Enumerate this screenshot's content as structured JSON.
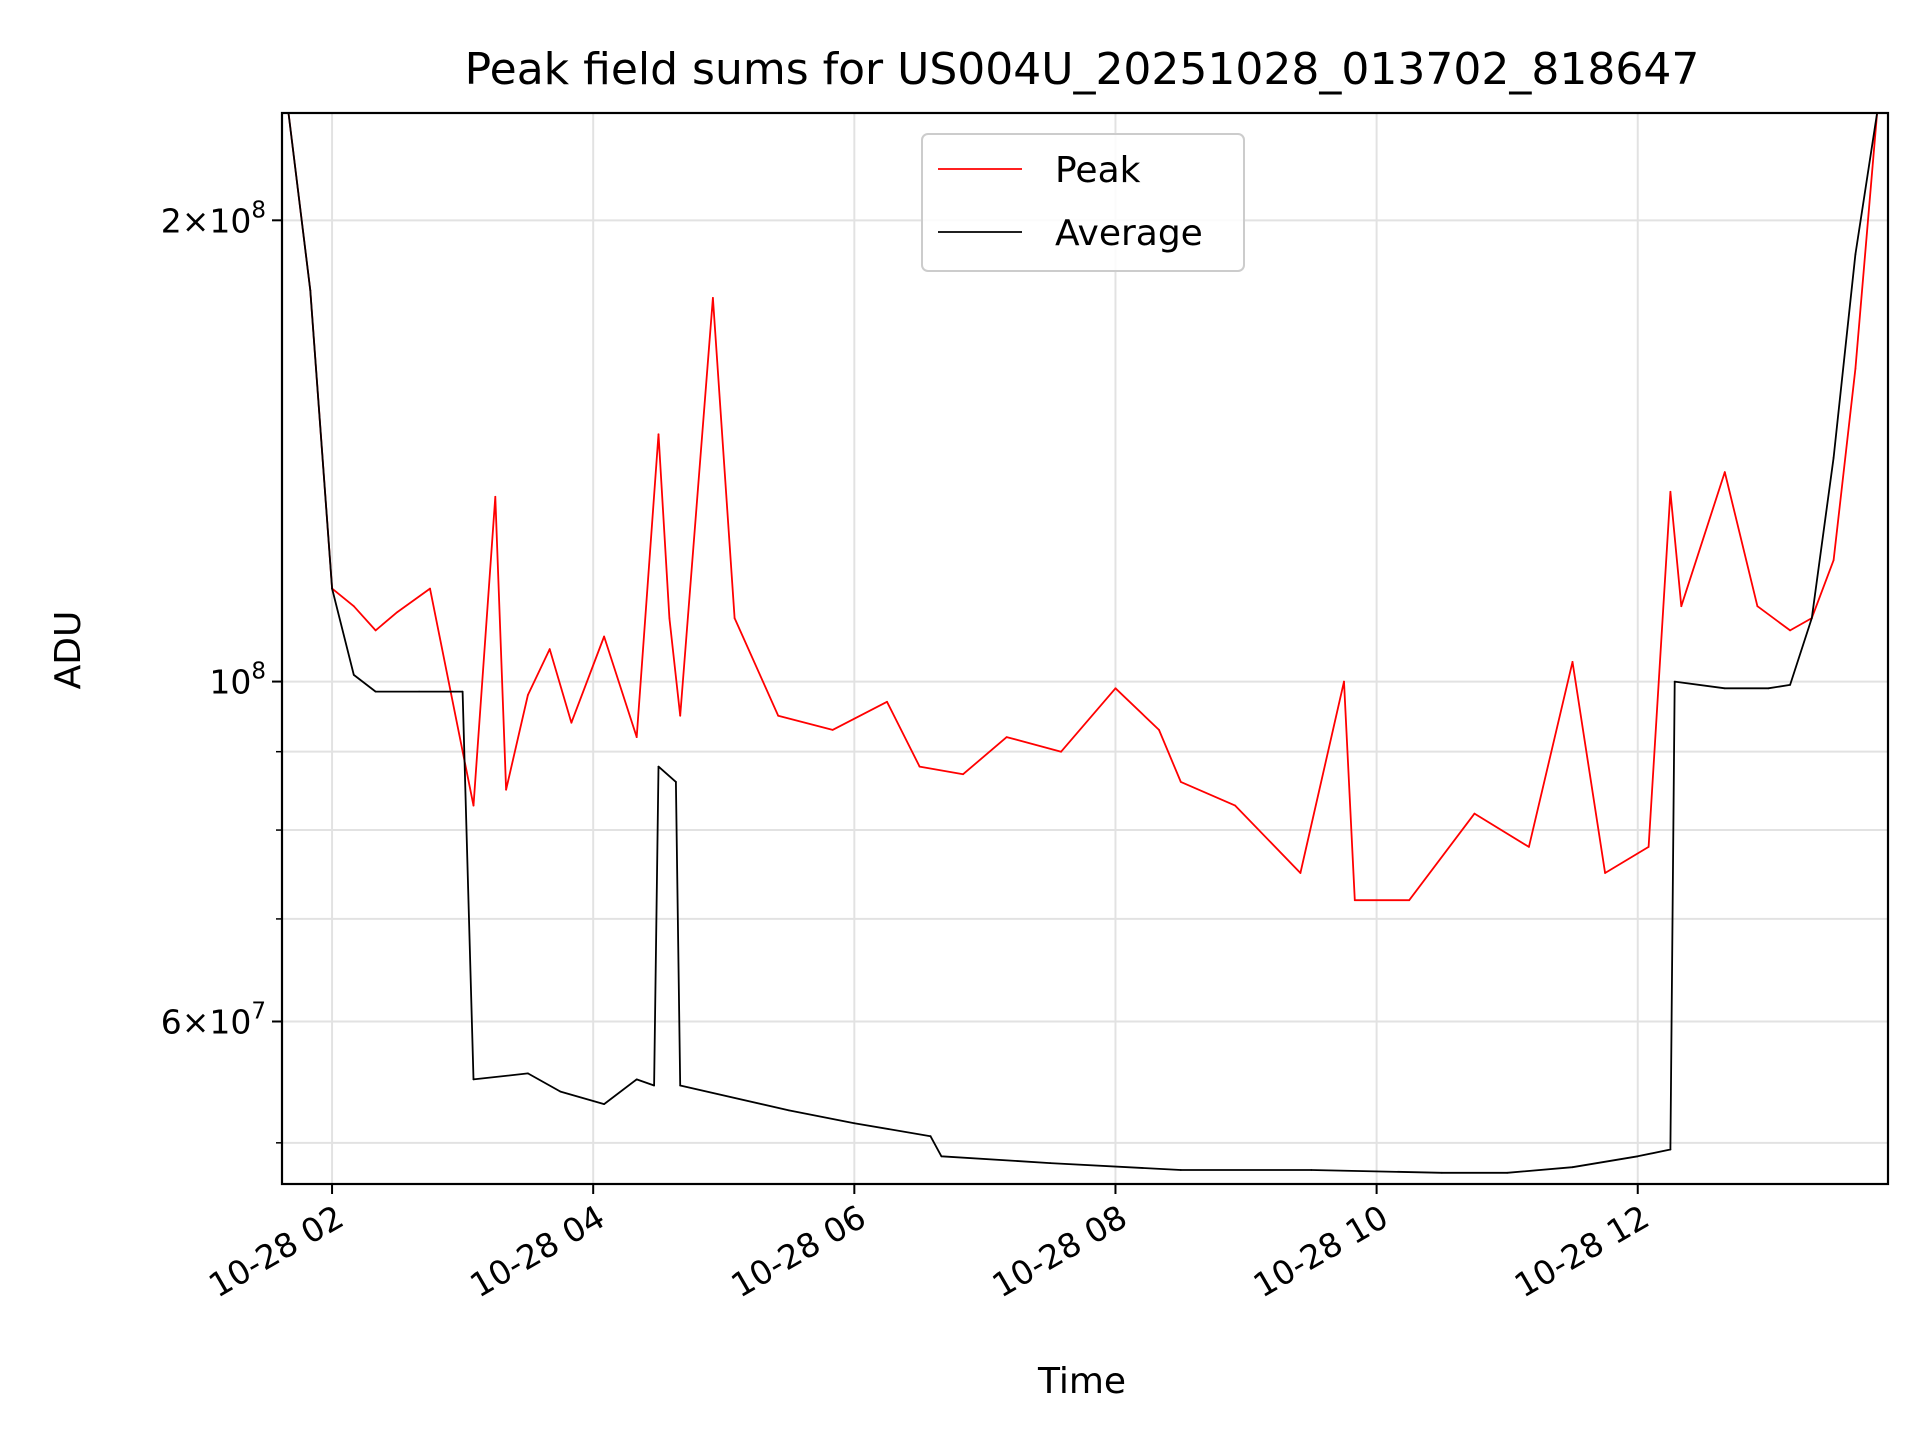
{
  "chart_data": {
    "type": "line",
    "title": "Peak field sums for US004U_20251028_013702_818647",
    "xlabel": "Time",
    "ylabel": "ADU",
    "x_scale": "time",
    "y_scale": "log",
    "xlim": [
      "2025-10-28 01:37",
      "2025-10-28 13:55"
    ],
    "ylim": [
      47000000,
      235000000
    ],
    "x_ticks": [
      {
        "value": "2025-10-28 02:00",
        "label": "10-28 02"
      },
      {
        "value": "2025-10-28 04:00",
        "label": "10-28 04"
      },
      {
        "value": "2025-10-28 06:00",
        "label": "10-28 06"
      },
      {
        "value": "2025-10-28 08:00",
        "label": "10-28 08"
      },
      {
        "value": "2025-10-28 10:00",
        "label": "10-28 10"
      },
      {
        "value": "2025-10-28 12:00",
        "label": "10-28 12"
      }
    ],
    "y_ticks": [
      {
        "value": 60000000,
        "mantissa": "6",
        "exponent": "7"
      },
      {
        "value": 100000000,
        "mantissa": "",
        "exponent": "8"
      },
      {
        "value": 200000000,
        "mantissa": "2",
        "exponent": "8"
      }
    ],
    "y_minor_ticks": [
      50000000,
      70000000,
      80000000,
      90000000
    ],
    "grid": true,
    "legend_position": "top-center",
    "series": [
      {
        "name": "Peak",
        "color": "#ff0000",
        "x": [
          "2025-10-28 01:40",
          "2025-10-28 01:50",
          "2025-10-28 02:00",
          "2025-10-28 02:10",
          "2025-10-28 02:20",
          "2025-10-28 02:30",
          "2025-10-28 02:45",
          "2025-10-28 03:05",
          "2025-10-28 03:15",
          "2025-10-28 03:20",
          "2025-10-28 03:30",
          "2025-10-28 03:40",
          "2025-10-28 03:50",
          "2025-10-28 04:05",
          "2025-10-28 04:20",
          "2025-10-28 04:30",
          "2025-10-28 04:35",
          "2025-10-28 04:40",
          "2025-10-28 04:55",
          "2025-10-28 05:05",
          "2025-10-28 05:25",
          "2025-10-28 05:50",
          "2025-10-28 06:15",
          "2025-10-28 06:30",
          "2025-10-28 06:50",
          "2025-10-28 07:10",
          "2025-10-28 07:35",
          "2025-10-28 08:00",
          "2025-10-28 08:20",
          "2025-10-28 08:30",
          "2025-10-28 08:55",
          "2025-10-28 09:25",
          "2025-10-28 09:45",
          "2025-10-28 09:50",
          "2025-10-28 10:15",
          "2025-10-28 10:45",
          "2025-10-28 11:10",
          "2025-10-28 11:30",
          "2025-10-28 11:45",
          "2025-10-28 12:05",
          "2025-10-28 12:15",
          "2025-10-28 12:20",
          "2025-10-28 12:40",
          "2025-10-28 12:55",
          "2025-10-28 13:10",
          "2025-10-28 13:20",
          "2025-10-28 13:30",
          "2025-10-28 13:40",
          "2025-10-28 13:50"
        ],
        "y": [
          235000000,
          180000000,
          115000000,
          112000000,
          108000000,
          111000000,
          115000000,
          83000000,
          132000000,
          85000000,
          98000000,
          105000000,
          94000000,
          107000000,
          92000000,
          145000000,
          110000000,
          95000000,
          178000000,
          110000000,
          95000000,
          93000000,
          97000000,
          88000000,
          87000000,
          92000000,
          90000000,
          99000000,
          93000000,
          86000000,
          83000000,
          75000000,
          100000000,
          72000000,
          72000000,
          82000000,
          78000000,
          103000000,
          75000000,
          78000000,
          133000000,
          112000000,
          137000000,
          112000000,
          108000000,
          110000000,
          120000000,
          160000000,
          235000000
        ]
      },
      {
        "name": "Average",
        "color": "#000000",
        "x": [
          "2025-10-28 01:40",
          "2025-10-28 01:50",
          "2025-10-28 02:00",
          "2025-10-28 02:10",
          "2025-10-28 02:20",
          "2025-10-28 02:40",
          "2025-10-28 03:00",
          "2025-10-28 03:05",
          "2025-10-28 03:30",
          "2025-10-28 03:45",
          "2025-10-28 04:05",
          "2025-10-28 04:20",
          "2025-10-28 04:28",
          "2025-10-28 04:30",
          "2025-10-28 04:38",
          "2025-10-28 04:40",
          "2025-10-28 05:30",
          "2025-10-28 06:00",
          "2025-10-28 06:35",
          "2025-10-28 06:40",
          "2025-10-28 07:30",
          "2025-10-28 08:30",
          "2025-10-28 09:30",
          "2025-10-28 10:30",
          "2025-10-28 11:00",
          "2025-10-28 11:30",
          "2025-10-28 12:00",
          "2025-10-28 12:15",
          "2025-10-28 12:17",
          "2025-10-28 12:40",
          "2025-10-28 13:00",
          "2025-10-28 13:10",
          "2025-10-28 13:20",
          "2025-10-28 13:30",
          "2025-10-28 13:40",
          "2025-10-28 13:50"
        ],
        "y": [
          235000000,
          180000000,
          115000000,
          101000000,
          98500000,
          98500000,
          98500000,
          55000000,
          55500000,
          54000000,
          53000000,
          55000000,
          54500000,
          88000000,
          86000000,
          54500000,
          52500000,
          51500000,
          50500000,
          49000000,
          48500000,
          48000000,
          48000000,
          47800000,
          47800000,
          48200000,
          49000000,
          49500000,
          100000000,
          99000000,
          99000000,
          99500000,
          110000000,
          140000000,
          190000000,
          235000000
        ]
      }
    ]
  }
}
